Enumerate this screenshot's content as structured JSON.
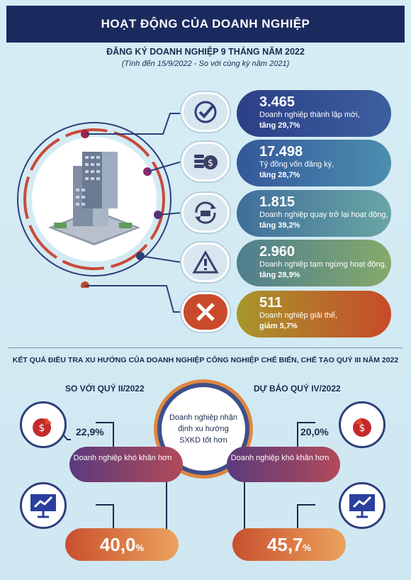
{
  "header": {
    "title": "HOẠT ĐỘNG CỦA DOANH NGHIỆP"
  },
  "registration": {
    "heading": "ĐĂNG KÝ DOANH NGHIỆP 9 THÁNG NĂM 2022",
    "note": "(Tính đến 15/9/2022 - So với cùng kỳ năm 2021)",
    "items": [
      {
        "value": "3.465",
        "label": "Doanh nghiệp thành lập mới,",
        "change": "tăng 29,7%",
        "icon": "checkmark-icon"
      },
      {
        "value": "17.498",
        "label": "Tỷ đồng vốn đăng ký,",
        "change": "tăng 28,7%",
        "icon": "coins-icon"
      },
      {
        "value": "1.815",
        "label": "Doanh nghiệp quay trở lại hoạt động,",
        "change": "tăng 39,2%",
        "icon": "factory-return-icon"
      },
      {
        "value": "2.960",
        "label": "Doanh nghiệp tạm ngừng hoạt động,",
        "change": "tăng 28,9%",
        "icon": "warning-icon"
      },
      {
        "value": "511",
        "label": "Doanh nghiệp giải thể,",
        "change": "giảm 5,7%",
        "icon": "x-icon"
      }
    ]
  },
  "survey": {
    "heading": "KẾT QUẢ ĐIỀU TRA XU HƯỚNG CỦA DOANH NGHIỆP CÔNG NGHIỆP CHẾ BIẾN, CHẾ TẠO QUÝ III NĂM 2022",
    "center_text": "Doanh nghiệp nhận định xu hướng SXKD tốt hơn",
    "left": {
      "title": "SO VỚI QUÝ II/2022",
      "hard_pct": "22,9%",
      "hard_label": "Doanh nghiệp khó khăn hơn",
      "better_value": "40,0",
      "better_unit": "%"
    },
    "right": {
      "title": "DỰ BÁO QUÝ IV/2022",
      "hard_pct": "20,0%",
      "hard_label": "Doanh nghiệp khó khăn hơn",
      "better_value": "45,7",
      "better_unit": "%"
    }
  },
  "colors": {
    "navy": "#1b2a5e",
    "pill1": "#2e4a8c",
    "pill2": "#3a6fa0",
    "pill3": "#4d8ea0",
    "pill4": "#6f9a6a",
    "pill5": "#c04a2a"
  }
}
